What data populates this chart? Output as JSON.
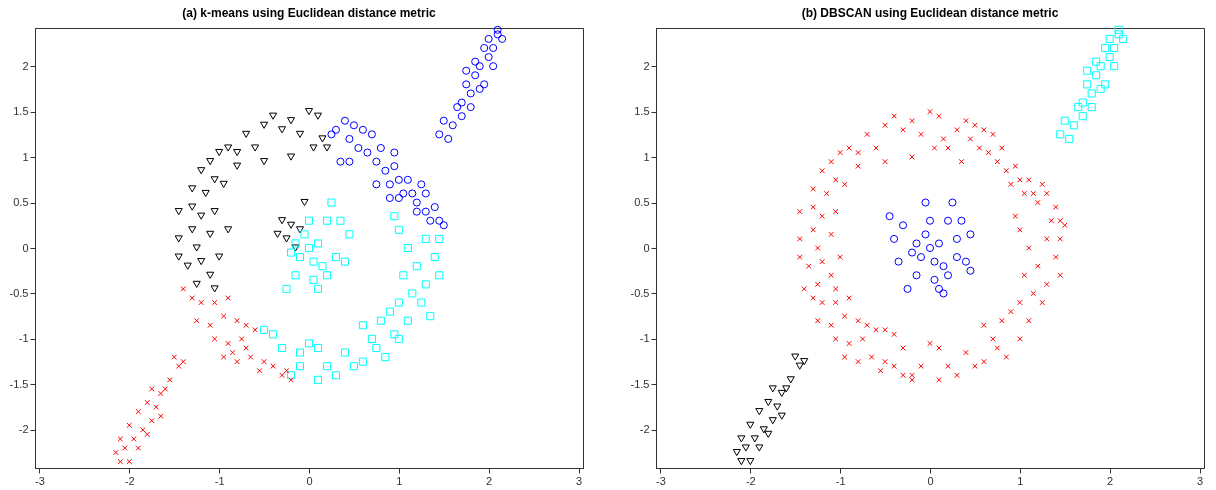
{
  "chart_data": [
    {
      "type": "scatter",
      "title": "(a) k-means using Euclidean distance metric",
      "grid": false,
      "xlim": [
        -3.05,
        3.05
      ],
      "ylim": [
        -2.42,
        2.42
      ],
      "xticks": [
        -3,
        -2,
        -1,
        0,
        1,
        2,
        3
      ],
      "yticks": [
        -2,
        -1.5,
        -1,
        -0.5,
        0,
        0.5,
        1,
        1.5,
        2
      ],
      "series": [
        {
          "color": "#0000ff",
          "marker": "circle",
          "x": [
            0.3,
            0.4,
            0.5,
            0.45,
            0.6,
            0.7,
            0.55,
            0.65,
            0.35,
            0.45,
            0.75,
            0.8,
            0.85,
            0.9,
            0.95,
            1.0,
            1.05,
            0.9,
            1.1,
            1.15,
            1.2,
            1.25,
            1.3,
            1.3,
            1.4,
            1.2,
            1.35,
            1.45,
            1.5,
            0.75,
            1.0,
            0.25,
            0.95,
            1.45,
            1.5,
            1.55,
            1.6,
            1.65,
            1.7,
            1.75,
            1.8,
            1.85,
            1.9,
            1.95,
            2.0,
            2.05,
            2.1,
            2.15,
            1.85,
            1.75,
            1.95,
            2.05,
            1.7,
            2.1,
            1.8,
            1.9,
            2.0
          ],
          "values": [
            1.3,
            1.4,
            1.35,
            1.2,
            1.3,
            1.25,
            1.1,
            1.05,
            0.95,
            0.95,
            0.95,
            1.1,
            0.85,
            0.7,
            0.9,
            0.75,
            0.6,
            0.55,
            0.75,
            0.6,
            0.5,
            0.7,
            0.6,
            0.4,
            0.45,
            0.4,
            0.3,
            0.3,
            0.25,
            0.7,
            0.55,
            1.25,
            1.05,
            1.25,
            1.4,
            1.2,
            1.35,
            1.55,
            1.6,
            1.8,
            1.7,
            1.9,
            2.0,
            1.8,
            2.1,
            2.2,
            2.35,
            2.3,
            2.05,
            1.95,
            2.2,
            2.0,
            1.45,
            2.4,
            1.55,
            1.75,
            2.3
          ]
        },
        {
          "color": "#000000",
          "marker": "triangle",
          "x": [
            0.0,
            0.1,
            -0.2,
            -0.4,
            -0.3,
            -0.1,
            0.15,
            0.2,
            0.05,
            -0.2,
            -0.5,
            -0.7,
            -0.6,
            -0.8,
            -0.9,
            -1.0,
            -0.8,
            -0.5,
            -1.1,
            -1.2,
            -1.05,
            -0.95,
            -1.3,
            -1.15,
            -1.3,
            -1.45,
            -1.2,
            -1.05,
            -1.3,
            -1.45,
            -1.1,
            -1.25,
            -1.45,
            -1.35,
            -1.2,
            -1.0,
            -1.1,
            -1.05,
            -1.25,
            -0.9,
            -0.3,
            -0.2,
            -0.05,
            -0.25,
            -0.1,
            -0.35,
            -0.15
          ],
          "values": [
            1.5,
            1.45,
            1.4,
            1.45,
            1.3,
            1.25,
            1.2,
            1.1,
            1.1,
            1.0,
            1.35,
            1.25,
            1.1,
            1.05,
            1.1,
            1.05,
            0.9,
            0.95,
            0.95,
            0.85,
            0.75,
            0.7,
            0.65,
            0.6,
            0.45,
            0.4,
            0.35,
            0.4,
            0.2,
            0.1,
            0.15,
            0.0,
            -0.1,
            -0.2,
            -0.15,
            -0.1,
            -0.3,
            -0.45,
            -0.4,
            0.2,
            0.3,
            0.25,
            0.5,
            0.1,
            0.2,
            0.15,
            0.0
          ]
        },
        {
          "color": "#00ffff",
          "marker": "square",
          "x": [
            0,
            0.1,
            -0.1,
            0.05,
            -0.05,
            0.2,
            0.25,
            -0.2,
            0.15,
            0.3,
            -0.15,
            0.1,
            0.4,
            -0.25,
            0.0,
            -0.15,
            0.2,
            0.45,
            0.05,
            0.35,
            0.95,
            1.0,
            1.1,
            1.3,
            1.45,
            1.4,
            1.2,
            1.05,
            1.45,
            1.3,
            1.15,
            1.25,
            1.0,
            0.9,
            1.1,
            0.8,
            0.6,
            0.7,
            1.0,
            0.85,
            0.6,
            0.5,
            0.4,
            0.3,
            0.2,
            0.1,
            0.0,
            -0.1,
            -0.2,
            -0.3,
            -0.4,
            -0.5,
            0.1,
            0.75,
            0.95,
            -0.1,
            1.35
          ],
          "values": [
            0,
            0.05,
            -0.1,
            -0.15,
            0.15,
            0.3,
            0.5,
            -0.05,
            -0.2,
            -0.1,
            -0.3,
            -0.45,
            -0.15,
            -0.45,
            0.3,
            0.05,
            -0.3,
            0.15,
            -0.35,
            0.3,
            0.35,
            0.2,
            0.0,
            0.1,
            0.1,
            -0.1,
            -0.2,
            -0.3,
            -0.3,
            -0.4,
            -0.5,
            -0.6,
            -0.6,
            -0.7,
            -0.8,
            -0.8,
            -0.85,
            -1.0,
            -1.0,
            -1.2,
            -1.25,
            -1.3,
            -1.15,
            -1.4,
            -1.3,
            -1.1,
            -1.05,
            -1.3,
            -1.4,
            -1.1,
            -0.95,
            -0.9,
            -1.45,
            -1.1,
            -0.95,
            -1.15,
            -0.75
          ]
        },
        {
          "color": "#ff0000",
          "marker": "cross",
          "x": [
            -1.4,
            -1.3,
            -1.2,
            -1.05,
            -0.9,
            -1.25,
            -1.1,
            -0.95,
            -0.8,
            -0.7,
            -1.05,
            -0.9,
            -0.75,
            -0.6,
            -0.95,
            -0.8,
            -0.65,
            -0.5,
            -0.55,
            -0.4,
            -0.3,
            -0.2,
            -0.25,
            -0.7,
            -0.85,
            -1.5,
            -1.4,
            -1.55,
            -1.45,
            -1.6,
            -1.65,
            -1.7,
            -1.75,
            -1.8,
            -1.85,
            -1.9,
            -1.95,
            -2.0,
            -2.05,
            -2.1,
            -2.15,
            -2.0,
            -1.8,
            -1.65,
            -1.75,
            -1.9,
            -2.1
          ],
          "values": [
            -0.45,
            -0.55,
            -0.6,
            -0.6,
            -0.55,
            -0.8,
            -0.85,
            -0.75,
            -0.8,
            -0.85,
            -1.0,
            -1.05,
            -1.0,
            -0.9,
            -1.2,
            -1.25,
            -1.2,
            -1.25,
            -1.35,
            -1.3,
            -1.4,
            -1.45,
            -1.35,
            -1.1,
            -1.15,
            -1.2,
            -1.25,
            -1.45,
            -1.3,
            -1.55,
            -1.6,
            -1.75,
            -1.9,
            -1.7,
            -2.0,
            -1.8,
            -2.1,
            -1.95,
            -2.2,
            -2.35,
            -2.25,
            -2.35,
            -2.05,
            -1.85,
            -1.55,
            -2.2,
            -2.1
          ]
        }
      ]
    },
    {
      "type": "scatter",
      "title": "(b) DBSCAN using Euclidean distance metric",
      "grid": false,
      "xlim": [
        -3.05,
        3.05
      ],
      "ylim": [
        -2.42,
        2.42
      ],
      "xticks": [
        -3,
        -2,
        -1,
        0,
        1,
        2,
        3
      ],
      "yticks": [
        -2,
        -1.5,
        -1,
        -0.5,
        0,
        0.5,
        1,
        1.5,
        2
      ],
      "series": [
        {
          "color": "#00ffff",
          "marker": "square",
          "x": [
            1.45,
            1.5,
            1.55,
            1.6,
            1.65,
            1.7,
            1.75,
            1.8,
            1.85,
            1.9,
            1.95,
            2.0,
            2.05,
            2.1,
            2.15,
            1.85,
            1.75,
            1.95,
            2.05,
            1.7,
            2.1,
            1.8,
            1.9,
            2.0
          ],
          "values": [
            1.25,
            1.4,
            1.2,
            1.35,
            1.55,
            1.6,
            1.8,
            1.7,
            1.9,
            2.0,
            1.8,
            2.1,
            2.2,
            2.35,
            2.3,
            2.05,
            1.95,
            2.2,
            2.0,
            1.45,
            2.4,
            1.55,
            1.75,
            2.3
          ]
        },
        {
          "color": "#ff0000",
          "marker": "cross",
          "x": [
            0.3,
            0.4,
            0.5,
            0.45,
            0.6,
            0.7,
            0.55,
            0.65,
            0.35,
            0.75,
            0.8,
            0.85,
            0.9,
            0.95,
            1.0,
            1.05,
            1.1,
            1.15,
            1.2,
            1.25,
            1.3,
            1.4,
            1.35,
            1.45,
            1.5,
            0.0,
            0.1,
            -0.2,
            -0.4,
            -0.3,
            -0.1,
            0.15,
            0.2,
            0.05,
            -0.2,
            -0.5,
            -0.7,
            -0.6,
            -0.8,
            -0.9,
            -1.0,
            -0.8,
            -0.5,
            -1.1,
            -1.2,
            -1.05,
            -0.95,
            -1.3,
            -1.15,
            -1.3,
            -1.45,
            -1.2,
            -1.05,
            -1.3,
            -1.45,
            -1.1,
            -1.25,
            -1.45,
            -1.35,
            -1.2,
            -1.0,
            -1.1,
            -1.05,
            -1.25,
            0.95,
            1.0,
            1.1,
            1.3,
            1.45,
            1.4,
            1.2,
            1.05,
            1.45,
            1.3,
            1.15,
            1.25,
            1.0,
            0.9,
            1.1,
            0.8,
            0.6,
            0.7,
            1.0,
            0.85,
            0.6,
            0.5,
            0.4,
            0.3,
            0.2,
            0.1,
            0.0,
            -0.1,
            -0.2,
            -0.3,
            -0.4,
            -0.5,
            0.1,
            0.75,
            -1.4,
            -1.3,
            -1.2,
            -1.05,
            -0.9,
            -1.25,
            -1.1,
            -0.95,
            -0.8,
            -0.7,
            -1.05,
            -0.9,
            -0.75,
            -0.6,
            -0.95,
            -0.8,
            -0.65,
            -0.5,
            -0.55,
            -0.4,
            -0.3,
            -0.2
          ],
          "values": [
            1.3,
            1.4,
            1.35,
            1.2,
            1.3,
            1.25,
            1.1,
            1.05,
            0.95,
            0.95,
            1.1,
            0.85,
            0.7,
            0.9,
            0.75,
            0.6,
            0.75,
            0.6,
            0.5,
            0.7,
            0.6,
            0.45,
            0.3,
            0.3,
            0.25,
            1.5,
            1.45,
            1.4,
            1.45,
            1.3,
            1.25,
            1.2,
            1.1,
            1.1,
            1.0,
            1.35,
            1.25,
            1.1,
            1.05,
            1.1,
            1.05,
            0.9,
            0.95,
            0.95,
            0.85,
            0.75,
            0.7,
            0.65,
            0.6,
            0.45,
            0.4,
            0.35,
            0.4,
            0.2,
            0.1,
            0.15,
            0.0,
            -0.1,
            -0.2,
            -0.15,
            -0.1,
            -0.3,
            -0.45,
            -0.4,
            0.35,
            0.2,
            0.0,
            0.1,
            0.1,
            -0.1,
            -0.2,
            -0.3,
            -0.3,
            -0.4,
            -0.5,
            -0.6,
            -0.6,
            -0.7,
            -0.8,
            -0.8,
            -0.85,
            -1.0,
            -1.0,
            -1.2,
            -1.25,
            -1.3,
            -1.15,
            -1.4,
            -1.3,
            -1.1,
            -1.05,
            -1.3,
            -1.4,
            -1.1,
            -0.95,
            -0.9,
            -1.45,
            -1.1,
            -0.45,
            -0.55,
            -0.6,
            -0.6,
            -0.55,
            -0.8,
            -0.85,
            -0.75,
            -0.8,
            -0.85,
            -1.0,
            -1.05,
            -1.0,
            -0.9,
            -1.2,
            -1.25,
            -1.2,
            -1.25,
            -1.35,
            -1.3,
            -1.4,
            -1.45
          ]
        },
        {
          "color": "#0000ff",
          "marker": "circle",
          "x": [
            0,
            0.1,
            -0.1,
            0.05,
            -0.05,
            0.2,
            0.25,
            -0.2,
            0.15,
            0.3,
            -0.15,
            0.1,
            0.4,
            -0.25,
            0.0,
            -0.15,
            0.2,
            0.45,
            0.05,
            0.35,
            -0.45,
            -0.4,
            -0.35,
            -0.05,
            0.45,
            0.15,
            -0.3,
            0.3
          ],
          "values": [
            0,
            0.05,
            -0.1,
            -0.15,
            0.15,
            0.3,
            0.5,
            -0.05,
            -0.2,
            -0.1,
            -0.3,
            -0.45,
            -0.15,
            -0.45,
            0.3,
            0.05,
            -0.3,
            0.15,
            -0.35,
            0.3,
            0.35,
            0.1,
            -0.15,
            0.5,
            -0.25,
            -0.5,
            0.25,
            0.1
          ]
        },
        {
          "color": "#000000",
          "marker": "triangle",
          "x": [
            -1.5,
            -1.4,
            -1.55,
            -1.45,
            -1.6,
            -1.65,
            -1.7,
            -1.75,
            -1.8,
            -1.85,
            -1.9,
            -1.95,
            -2.0,
            -2.05,
            -2.1,
            -2.15,
            -2.0,
            -1.8,
            -1.65,
            -1.75,
            -1.9,
            -2.1
          ],
          "values": [
            -1.2,
            -1.25,
            -1.45,
            -1.3,
            -1.55,
            -1.6,
            -1.75,
            -1.9,
            -1.7,
            -2.0,
            -1.8,
            -2.1,
            -1.95,
            -2.2,
            -2.35,
            -2.25,
            -2.35,
            -2.05,
            -1.85,
            -1.55,
            -2.2,
            -2.1
          ]
        }
      ]
    }
  ]
}
